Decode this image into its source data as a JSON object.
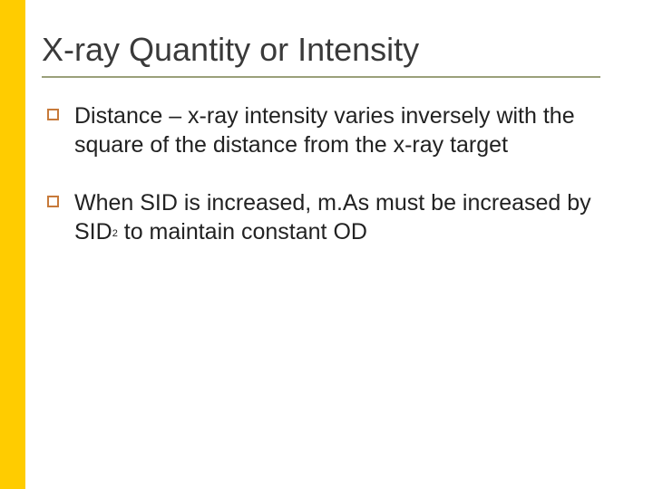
{
  "slide": {
    "title": "X-ray Quantity or Intensity",
    "accent_bar_color": "#ffcc00",
    "underline_color": "#9aa07a",
    "bullet_marker_color": "#c77a3a",
    "title_color": "#3a3a3a",
    "text_color": "#222222",
    "background_color": "#ffffff",
    "title_fontsize": 36,
    "body_fontsize": 25,
    "bullets": [
      {
        "text": "Distance – x-ray intensity varies inversely with the square of the distance from the x-ray target"
      },
      {
        "text_before_sup": "When SID is increased, m.As must be increased by SID",
        "sup": "2",
        "text_after_sup": " to maintain constant OD"
      }
    ]
  }
}
